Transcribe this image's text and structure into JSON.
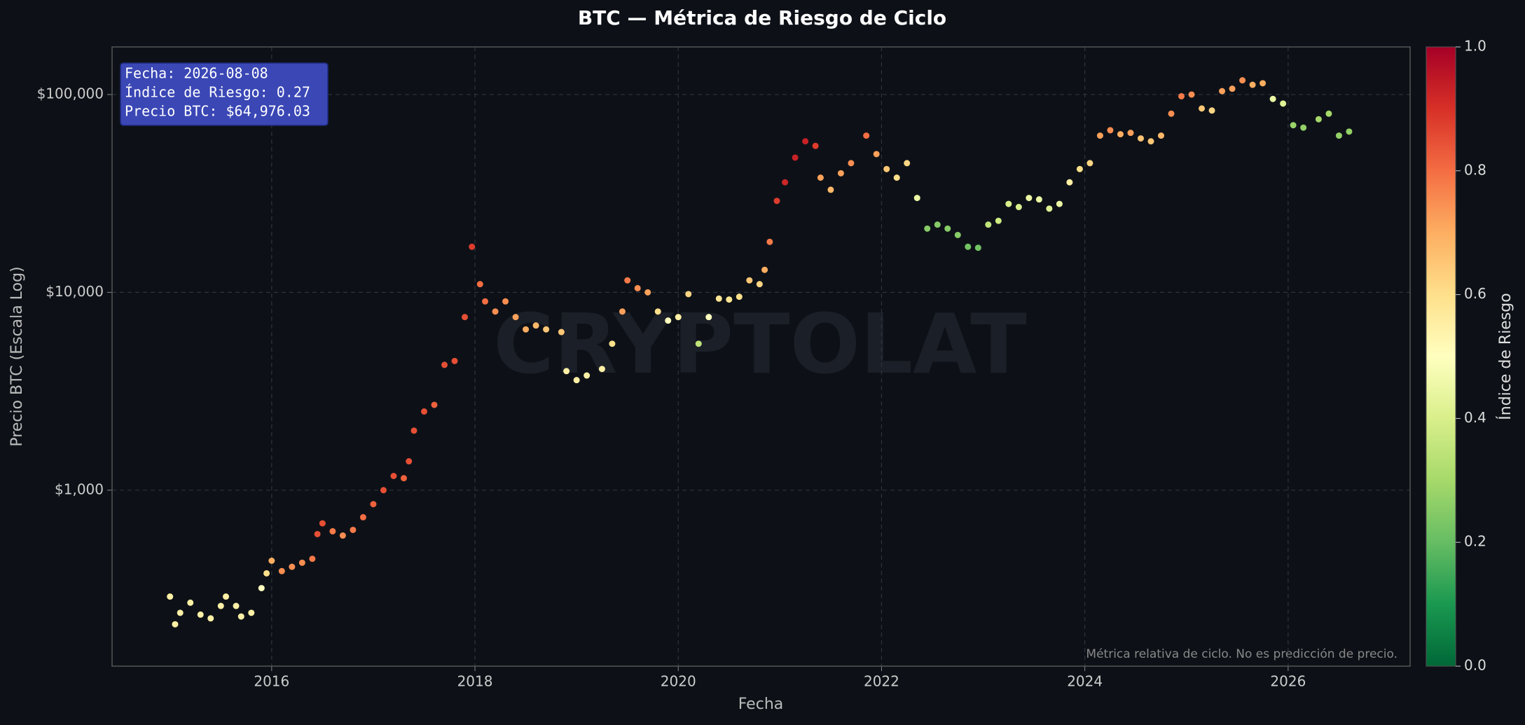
{
  "chart_data": {
    "type": "scatter",
    "title": "BTC — Métrica de Riesgo de Ciclo",
    "xlabel": "Fecha",
    "ylabel": "Precio BTC (Escala Log)",
    "colorbar_label": "Índice de Riesgo",
    "watermark": "CRYPTOLAT",
    "footnote": "Métrica relativa de ciclo. No es predicción de precio.",
    "annotation": [
      "Fecha: 2026-08-08",
      "Índice de Riesgo: 0.27",
      "Precio BTC: $64,976.03"
    ],
    "log_y": true,
    "grid": true,
    "xlim": [
      2014.43,
      2027.2
    ],
    "xticks": [
      2016,
      2018,
      2020,
      2022,
      2024,
      2026
    ],
    "ylim": [
      129,
      174000
    ],
    "yticks": [
      {
        "value": 1000,
        "label": "$1,000"
      },
      {
        "value": 10000,
        "label": "$10,000"
      },
      {
        "value": 100000,
        "label": "$100,000"
      }
    ],
    "clim": [
      0,
      1
    ],
    "cticks": [
      {
        "value": 0,
        "label": "0.0"
      },
      {
        "value": 0.2,
        "label": "0.2"
      },
      {
        "value": 0.4,
        "label": "0.4"
      },
      {
        "value": 0.6,
        "label": "0.6"
      },
      {
        "value": 0.8,
        "label": "0.8"
      },
      {
        "value": 1,
        "label": "1.0"
      }
    ],
    "colormap": [
      "#006837",
      "#1a9850",
      "#66bd63",
      "#a6d96a",
      "#d9ef8b",
      "#ffffbf",
      "#fee08b",
      "#fdae61",
      "#f46d43",
      "#d73027",
      "#a50026"
    ],
    "x": [
      2015.0,
      2015.05,
      2015.1,
      2015.2,
      2015.3,
      2015.4,
      2015.5,
      2015.55,
      2015.65,
      2015.7,
      2015.8,
      2015.9,
      2015.95,
      2016.0,
      2016.1,
      2016.2,
      2016.3,
      2016.4,
      2016.45,
      2016.5,
      2016.6,
      2016.7,
      2016.8,
      2016.9,
      2017.0,
      2017.1,
      2017.2,
      2017.3,
      2017.35,
      2017.4,
      2017.5,
      2017.6,
      2017.7,
      2017.8,
      2017.9,
      2017.97,
      2018.05,
      2018.1,
      2018.2,
      2018.3,
      2018.4,
      2018.5,
      2018.6,
      2018.7,
      2018.85,
      2018.9,
      2019.0,
      2019.1,
      2019.25,
      2019.35,
      2019.45,
      2019.5,
      2019.6,
      2019.7,
      2019.8,
      2019.9,
      2020.0,
      2020.1,
      2020.2,
      2020.3,
      2020.4,
      2020.5,
      2020.6,
      2020.7,
      2020.8,
      2020.85,
      2020.9,
      2020.97,
      2021.05,
      2021.15,
      2021.25,
      2021.35,
      2021.4,
      2021.5,
      2021.6,
      2021.7,
      2021.85,
      2021.95,
      2022.05,
      2022.15,
      2022.25,
      2022.35,
      2022.45,
      2022.55,
      2022.65,
      2022.75,
      2022.85,
      2022.95,
      2023.05,
      2023.15,
      2023.25,
      2023.35,
      2023.45,
      2023.55,
      2023.65,
      2023.75,
      2023.85,
      2023.95,
      2024.05,
      2024.15,
      2024.25,
      2024.35,
      2024.45,
      2024.55,
      2024.65,
      2024.75,
      2024.85,
      2024.95,
      2025.05,
      2025.15,
      2025.25,
      2025.35,
      2025.45,
      2025.55,
      2025.65,
      2025.75,
      2025.85,
      2025.95,
      2026.05,
      2026.15,
      2026.3,
      2026.4,
      2026.5,
      2026.6
    ],
    "values": [
      290,
      210,
      240,
      270,
      235,
      225,
      260,
      290,
      260,
      230,
      240,
      320,
      380,
      440,
      390,
      410,
      430,
      450,
      600,
      680,
      620,
      590,
      630,
      730,
      850,
      1000,
      1180,
      1150,
      1400,
      2000,
      2500,
      2700,
      4300,
      4500,
      7500,
      17000,
      11000,
      9000,
      8000,
      9000,
      7500,
      6500,
      6800,
      6500,
      6300,
      4000,
      3600,
      3800,
      4100,
      5500,
      8000,
      11500,
      10500,
      10000,
      8000,
      7200,
      7500,
      9800,
      5500,
      7500,
      9300,
      9200,
      9500,
      11500,
      11000,
      13000,
      18000,
      29000,
      36000,
      48000,
      58000,
      55000,
      38000,
      33000,
      40000,
      45000,
      62000,
      50000,
      42000,
      38000,
      45000,
      30000,
      21000,
      22000,
      21000,
      19500,
      17000,
      16800,
      22000,
      23000,
      28000,
      27000,
      30000,
      29500,
      26500,
      28000,
      36000,
      42000,
      45000,
      62000,
      66000,
      63000,
      64000,
      60000,
      58000,
      62000,
      80000,
      98000,
      100000,
      85000,
      83000,
      104000,
      107000,
      118000,
      112000,
      114000,
      95000,
      90000,
      70000,
      68000,
      75000,
      80000,
      62000,
      64976.03
    ],
    "risk": [
      0.55,
      0.55,
      0.55,
      0.55,
      0.55,
      0.55,
      0.55,
      0.55,
      0.55,
      0.55,
      0.55,
      0.5,
      0.6,
      0.7,
      0.75,
      0.75,
      0.75,
      0.78,
      0.85,
      0.85,
      0.78,
      0.75,
      0.78,
      0.8,
      0.82,
      0.85,
      0.85,
      0.82,
      0.85,
      0.85,
      0.85,
      0.82,
      0.85,
      0.85,
      0.85,
      0.88,
      0.8,
      0.8,
      0.75,
      0.75,
      0.72,
      0.7,
      0.68,
      0.65,
      0.65,
      0.55,
      0.55,
      0.55,
      0.55,
      0.6,
      0.72,
      0.78,
      0.75,
      0.72,
      0.6,
      0.5,
      0.55,
      0.62,
      0.35,
      0.5,
      0.58,
      0.58,
      0.6,
      0.65,
      0.62,
      0.7,
      0.78,
      0.88,
      0.92,
      0.93,
      0.93,
      0.88,
      0.72,
      0.68,
      0.72,
      0.75,
      0.8,
      0.72,
      0.65,
      0.6,
      0.62,
      0.45,
      0.25,
      0.25,
      0.25,
      0.25,
      0.22,
      0.22,
      0.35,
      0.38,
      0.4,
      0.4,
      0.45,
      0.45,
      0.42,
      0.45,
      0.55,
      0.6,
      0.62,
      0.72,
      0.75,
      0.7,
      0.72,
      0.66,
      0.65,
      0.68,
      0.75,
      0.78,
      0.75,
      0.65,
      0.62,
      0.72,
      0.72,
      0.75,
      0.7,
      0.7,
      0.45,
      0.42,
      0.28,
      0.27,
      0.3,
      0.3,
      0.27,
      0.27
    ]
  }
}
